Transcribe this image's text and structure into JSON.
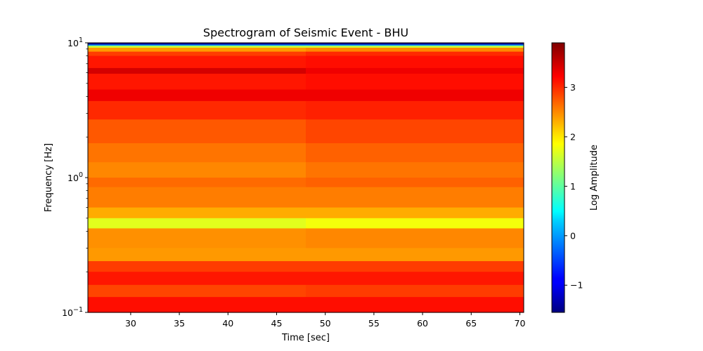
{
  "chart_data": {
    "type": "heatmap",
    "title": "Spectrogram of Seismic Event - BHU",
    "xlabel": "Time [sec]",
    "ylabel": "Frequency [Hz]",
    "xlim": [
      25.6,
      70.4
    ],
    "ylim": [
      0.1,
      10
    ],
    "yscale": "log",
    "xticks": [
      30,
      35,
      40,
      45,
      50,
      55,
      60,
      65,
      70
    ],
    "xtick_labels": [
      "30",
      "35",
      "40",
      "45",
      "50",
      "55",
      "60",
      "65",
      "70"
    ],
    "ytick_labels": [
      {
        "value": 10,
        "base": "10",
        "exp": "1"
      },
      {
        "value": 1,
        "base": "10",
        "exp": "0"
      },
      {
        "value": 0.1,
        "base": "10",
        "exp": "−1"
      }
    ],
    "colormap": "jet",
    "colorbar": {
      "label": "Log Amplitude",
      "range": [
        -1.55,
        3.9
      ],
      "ticks": [
        -1,
        0,
        1,
        2,
        3
      ],
      "tick_labels": [
        "−1",
        "0",
        "1",
        "2",
        "3"
      ]
    },
    "time_segments": [
      25.6,
      48,
      70.4
    ],
    "frequency_bands": [
      {
        "from": 9.7,
        "to": 10,
        "level": [
          -1.4,
          -1.4
        ]
      },
      {
        "from": 9.5,
        "to": 9.7,
        "level": [
          0.0,
          0.0
        ]
      },
      {
        "from": 9.2,
        "to": 9.5,
        "level": [
          1.6,
          1.6
        ]
      },
      {
        "from": 8.6,
        "to": 9.2,
        "level": [
          2.4,
          2.5
        ]
      },
      {
        "from": 8.0,
        "to": 8.6,
        "level": [
          2.9,
          3.0
        ]
      },
      {
        "from": 6.5,
        "to": 8.0,
        "level": [
          3.1,
          3.15
        ]
      },
      {
        "from": 5.9,
        "to": 6.5,
        "level": [
          3.45,
          3.3
        ]
      },
      {
        "from": 4.5,
        "to": 5.9,
        "level": [
          3.1,
          3.15
        ]
      },
      {
        "from": 3.7,
        "to": 4.5,
        "level": [
          3.3,
          3.3
        ]
      },
      {
        "from": 2.7,
        "to": 3.7,
        "level": [
          3.0,
          3.05
        ]
      },
      {
        "from": 1.8,
        "to": 2.7,
        "level": [
          2.75,
          2.85
        ]
      },
      {
        "from": 1.3,
        "to": 1.8,
        "level": [
          2.6,
          2.7
        ]
      },
      {
        "from": 1.0,
        "to": 1.3,
        "level": [
          2.5,
          2.6
        ]
      },
      {
        "from": 0.85,
        "to": 1.0,
        "level": [
          2.65,
          2.7
        ]
      },
      {
        "from": 0.6,
        "to": 0.85,
        "level": [
          2.55,
          2.55
        ]
      },
      {
        "from": 0.5,
        "to": 0.6,
        "level": [
          2.3,
          2.3
        ]
      },
      {
        "from": 0.42,
        "to": 0.5,
        "level": [
          1.7,
          1.8
        ]
      },
      {
        "from": 0.3,
        "to": 0.42,
        "level": [
          2.45,
          2.5
        ]
      },
      {
        "from": 0.24,
        "to": 0.3,
        "level": [
          2.4,
          2.4
        ]
      },
      {
        "from": 0.2,
        "to": 0.24,
        "level": [
          2.9,
          2.9
        ]
      },
      {
        "from": 0.16,
        "to": 0.2,
        "level": [
          3.1,
          3.1
        ]
      },
      {
        "from": 0.13,
        "to": 0.16,
        "level": [
          2.85,
          2.9
        ]
      },
      {
        "from": 0.1,
        "to": 0.13,
        "level": [
          3.15,
          3.15
        ]
      }
    ]
  }
}
